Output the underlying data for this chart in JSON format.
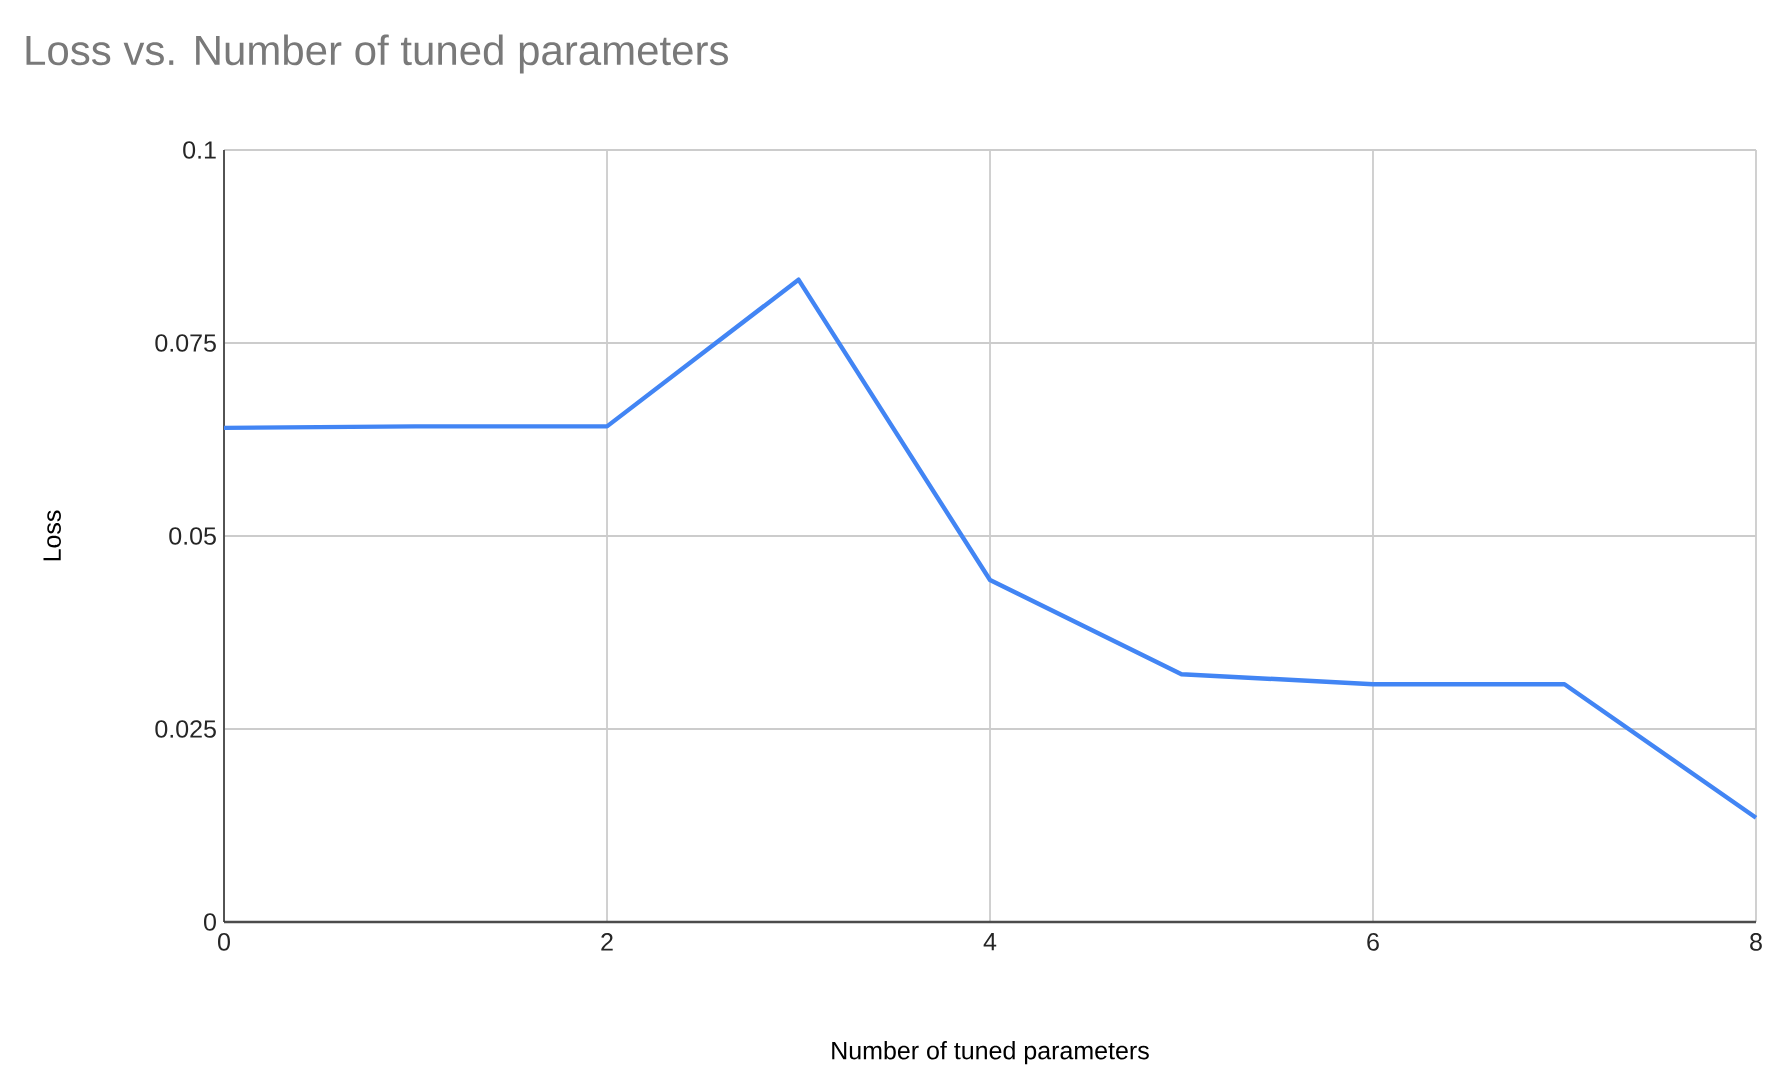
{
  "chart_data": {
    "type": "line",
    "title": "Loss vs. Number of tuned parameters",
    "xlabel": "Number of tuned parameters",
    "ylabel": "Loss",
    "x": [
      0,
      1,
      2,
      3,
      4,
      5,
      6,
      7,
      8
    ],
    "series": [
      {
        "color": "#4285f4",
        "values": [
          0.064,
          0.0642,
          0.0642,
          0.0832,
          0.0443,
          0.0321,
          0.0308,
          0.0308,
          0.0135
        ]
      }
    ],
    "xlim": [
      0,
      8
    ],
    "xticks": [
      0,
      2,
      4,
      6,
      8
    ],
    "ylim": [
      0,
      0.1
    ],
    "yticks": [
      0,
      0.025,
      0.05,
      0.075,
      0.1
    ],
    "grid": true,
    "legend": false,
    "marker": "none",
    "line_style": "solid"
  }
}
